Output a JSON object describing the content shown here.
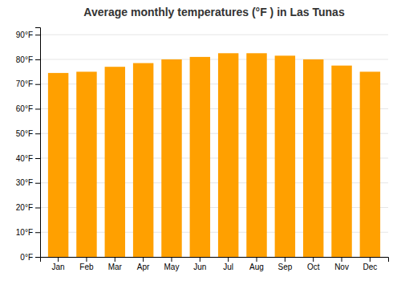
{
  "chart_data": {
    "type": "bar",
    "title": "Average monthly temperatures (°F ) in Las Tunas",
    "categories": [
      "Jan",
      "Feb",
      "Mar",
      "Apr",
      "May",
      "Jun",
      "Jul",
      "Aug",
      "Sep",
      "Oct",
      "Nov",
      "Dec"
    ],
    "values": [
      74.5,
      75.0,
      77.0,
      78.5,
      80.0,
      81.0,
      82.5,
      82.5,
      81.5,
      80.0,
      77.5,
      75.0
    ],
    "color": "#FFA000",
    "ylim": [
      0,
      93
    ],
    "yticks": [
      {
        "value": 0,
        "label": "0°F"
      },
      {
        "value": 10,
        "label": "10°F"
      },
      {
        "value": 20,
        "label": "20°F"
      },
      {
        "value": 30,
        "label": "30°F"
      },
      {
        "value": 40,
        "label": "40°F"
      },
      {
        "value": 50,
        "label": "50°F"
      },
      {
        "value": 60,
        "label": "60°F"
      },
      {
        "value": 70,
        "label": "70°F"
      },
      {
        "value": 80,
        "label": "80°F"
      },
      {
        "value": 90,
        "label": "90°F"
      }
    ],
    "grid": true
  }
}
